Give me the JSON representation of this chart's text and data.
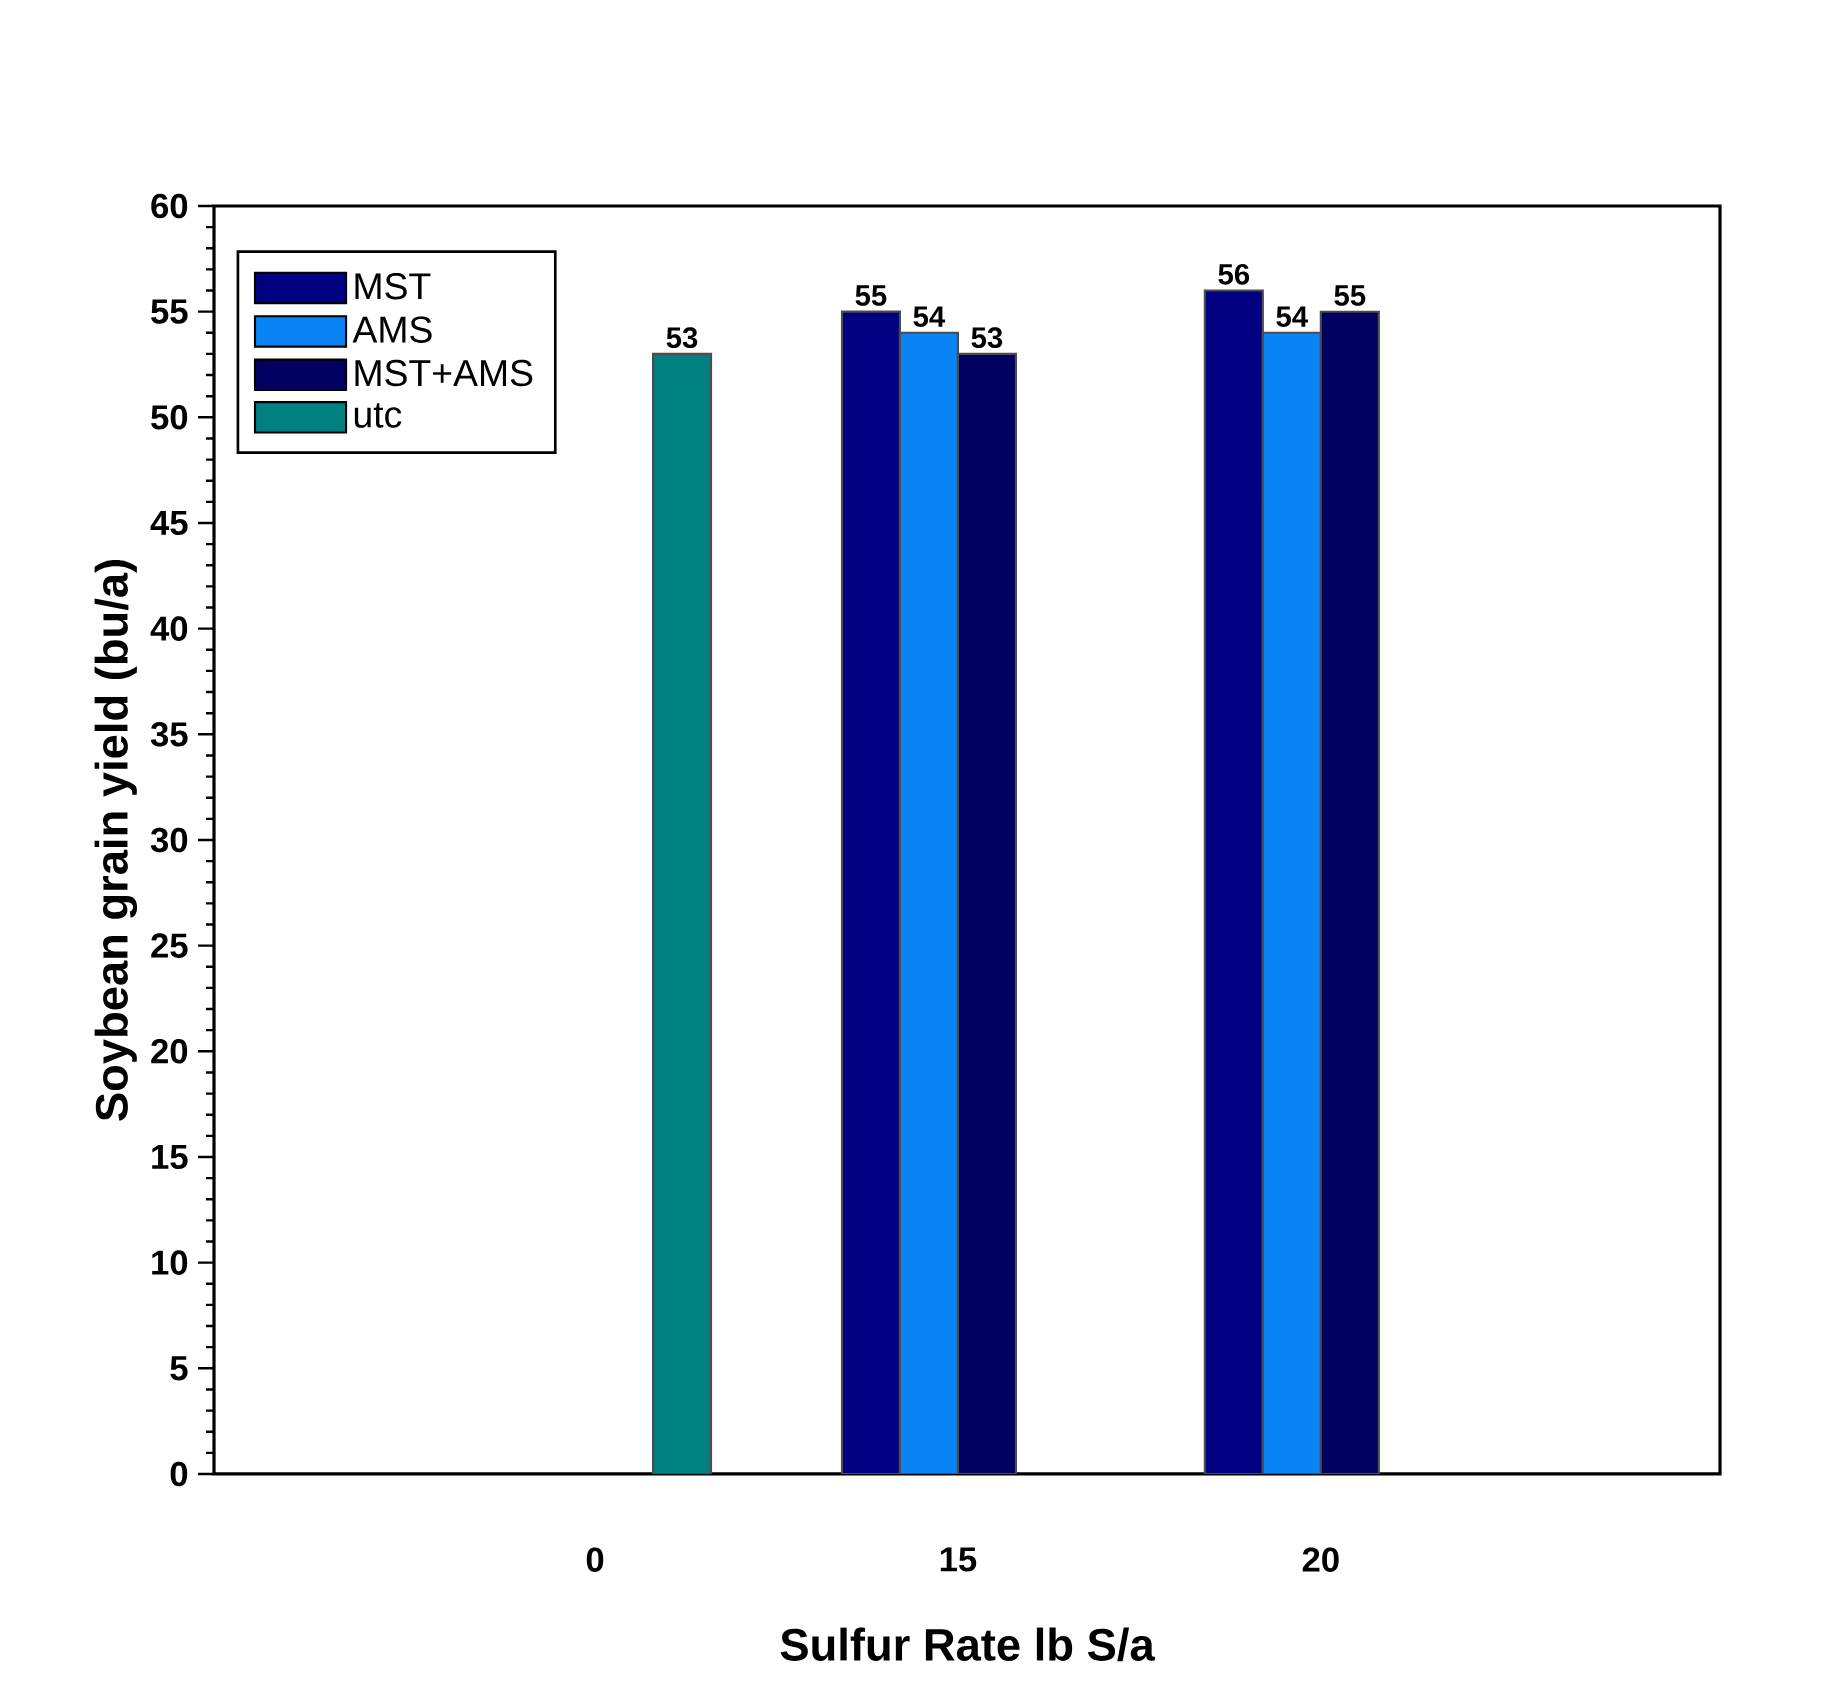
{
  "chart_data": {
    "type": "bar",
    "xlabel": "Sulfur Rate lb S/a",
    "ylabel": "Soybean grain yield (bu/a)",
    "categories": [
      "0",
      "15",
      "20"
    ],
    "series": [
      {
        "name": "MST",
        "color": "#000080",
        "values": [
          null,
          55,
          56
        ]
      },
      {
        "name": "AMS",
        "color": "#0a84f5",
        "values": [
          null,
          54,
          54
        ]
      },
      {
        "name": "MST+AMS",
        "color": "#000060",
        "values": [
          null,
          53,
          55
        ]
      },
      {
        "name": "utc",
        "color": "#008080",
        "values": [
          53,
          null,
          null
        ]
      }
    ],
    "ylim": [
      0,
      60
    ],
    "yticks": [
      0,
      5,
      10,
      15,
      20,
      25,
      30,
      35,
      40,
      45,
      50,
      55,
      60
    ],
    "data_labels": true,
    "legend": "top left",
    "grid": false
  }
}
